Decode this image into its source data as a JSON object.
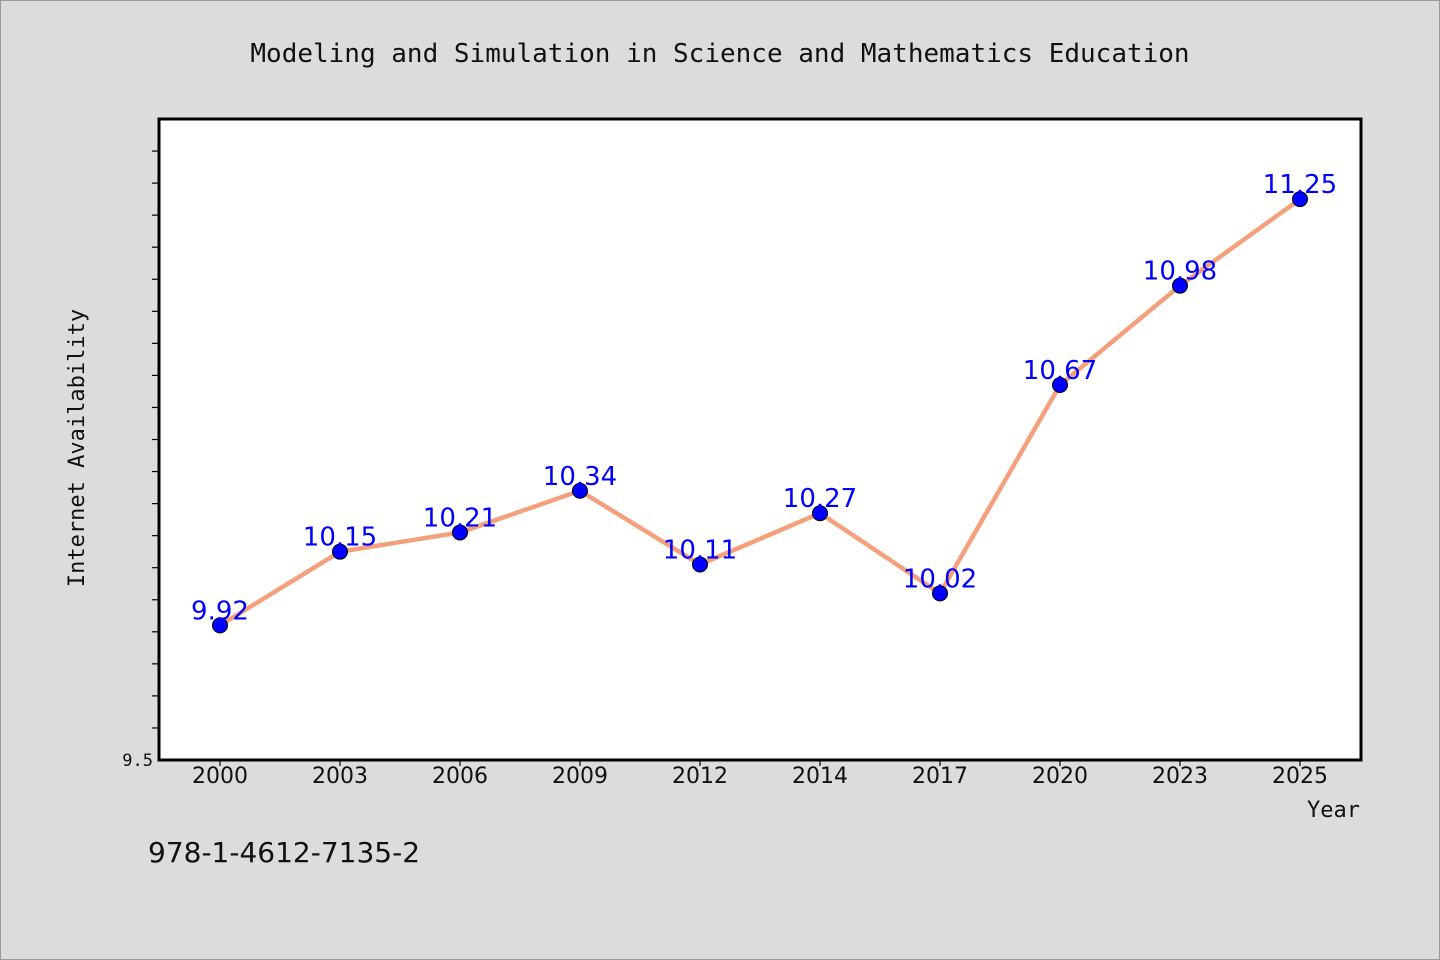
{
  "colors": {
    "background": "#dcdcdc",
    "plot_area": "#ffffff",
    "line": "#f4a07d",
    "marker": "#0000ff",
    "data_label": "#0000ff",
    "text": "#111111"
  },
  "footer": {
    "isbn": "978-1-4612-7135-2"
  },
  "chart_data": {
    "type": "line",
    "title": "Modeling and Simulation in Science and Mathematics Education",
    "xlabel": "Year",
    "ylabel": "Internet Availability",
    "categories": [
      "2000",
      "2003",
      "2006",
      "2009",
      "2012",
      "2014",
      "2017",
      "2020",
      "2023",
      "2025"
    ],
    "series": [
      {
        "values": [
          9.92,
          10.15,
          10.21,
          10.34,
          10.11,
          10.27,
          10.02,
          10.67,
          10.98,
          11.25
        ]
      }
    ],
    "data_labels": [
      "9.92",
      "10.15",
      "10.21",
      "10.34",
      "10.11",
      "10.27",
      "10.02",
      "10.67",
      "10.98",
      "11.25"
    ],
    "y_tick_labels": [
      "9.5"
    ],
    "ylim": [
      9.5,
      11.5
    ],
    "y_minor_ticks": 20,
    "grid": false,
    "legend": "none"
  }
}
